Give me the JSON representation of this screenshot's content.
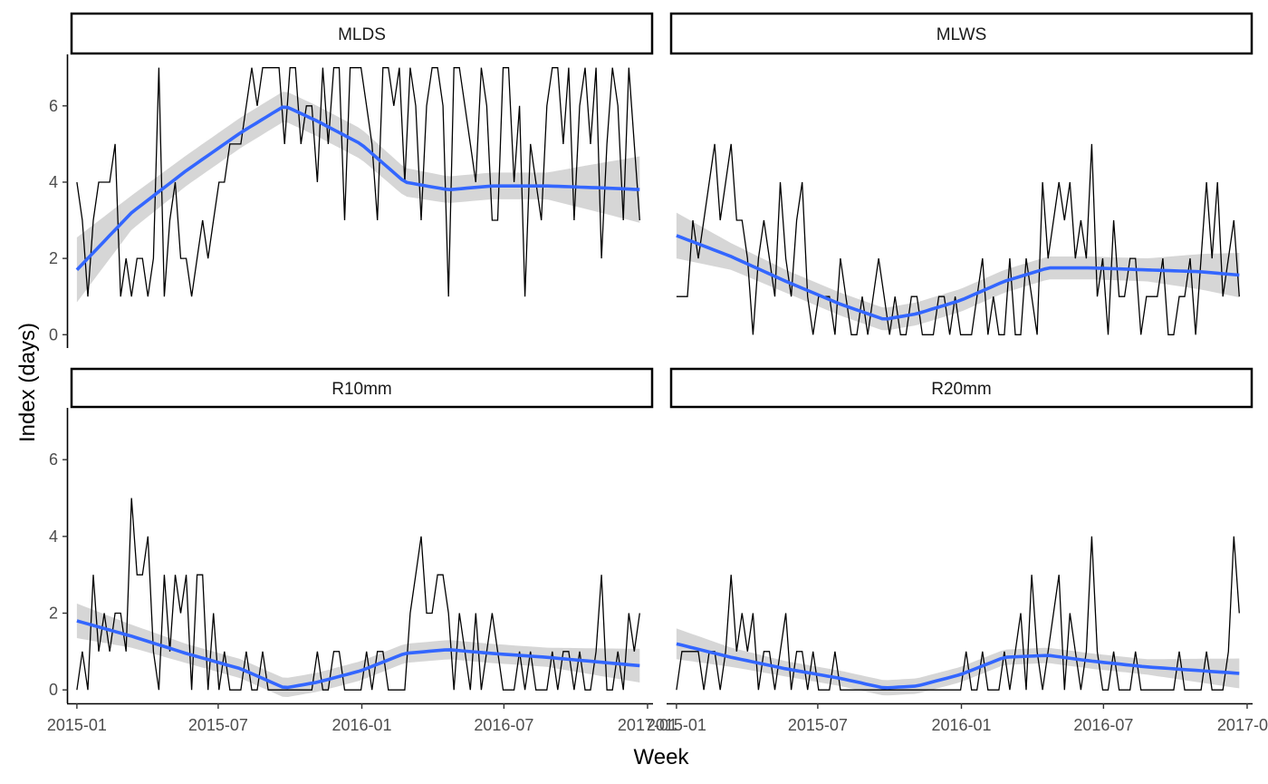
{
  "axes": {
    "xlabel": "Week",
    "ylabel": "Index (days)",
    "x_ticks": [
      "2015-01",
      "2015-07",
      "2016-01",
      "2016-07",
      "2017-01"
    ],
    "y_ticks": [
      "0",
      "2",
      "4",
      "6"
    ]
  },
  "chart_data": {
    "type": "line",
    "layout": "facet 2x2, shared x and y axes",
    "title": "",
    "xlabel": "Week",
    "ylabel": "Index (days)",
    "xlim": [
      "2014-12-24",
      "2017-01-08"
    ],
    "ylim": [
      -0.35,
      7.35
    ],
    "x_ticks": [
      "2015-01",
      "2015-07",
      "2016-01",
      "2016-07",
      "2017-01"
    ],
    "y_ticks": [
      0,
      2,
      4,
      6
    ],
    "colors": {
      "raw_line": "#000000",
      "smooth_line": "#3366ff",
      "ribbon": "#999999"
    },
    "smooth": "loess with grey 95% confidence ribbon",
    "weeks": {
      "start": "2015-01-01",
      "step_days": 7,
      "count": 104
    },
    "facets": [
      {
        "name": "MLDS",
        "values": [
          4,
          3,
          1,
          3,
          4,
          4,
          4,
          5,
          1,
          2,
          1,
          2,
          2,
          1,
          2,
          7,
          1,
          3,
          4,
          2,
          2,
          1,
          2,
          3,
          2,
          3,
          4,
          4,
          5,
          5,
          5,
          6,
          7,
          6,
          7,
          7,
          7,
          7,
          5,
          7,
          7,
          5,
          6,
          6,
          4,
          7,
          5,
          7,
          7,
          3,
          7,
          7,
          7,
          6,
          5,
          3,
          7,
          7,
          6,
          7,
          4,
          7,
          6,
          3,
          6,
          7,
          7,
          6,
          1,
          7,
          7,
          6,
          5,
          4,
          7,
          6,
          3,
          3,
          7,
          7,
          4,
          6,
          1,
          5,
          4,
          3,
          6,
          7,
          7,
          5,
          7,
          3,
          6,
          7,
          5,
          7,
          2,
          5,
          7,
          6,
          3,
          7,
          5,
          3
        ],
        "smooth": [
          [
            0,
            1.7
          ],
          [
            10,
            3.2
          ],
          [
            20,
            4.3
          ],
          [
            30,
            5.3
          ],
          [
            38,
            6.0
          ],
          [
            44,
            5.6
          ],
          [
            52,
            5.0
          ],
          [
            60,
            4.0
          ],
          [
            68,
            3.8
          ],
          [
            76,
            3.9
          ],
          [
            86,
            3.9
          ],
          [
            96,
            3.85
          ],
          [
            104,
            3.8
          ]
        ],
        "ribbon_halfwidth": [
          [
            0,
            0.85
          ],
          [
            10,
            0.45
          ],
          [
            20,
            0.4
          ],
          [
            30,
            0.4
          ],
          [
            38,
            0.4
          ],
          [
            52,
            0.4
          ],
          [
            68,
            0.35
          ],
          [
            86,
            0.35
          ],
          [
            104,
            0.9
          ]
        ]
      },
      {
        "name": "MLWS",
        "values": [
          1,
          1,
          1,
          3,
          2,
          3,
          4,
          5,
          3,
          4,
          5,
          3,
          3,
          2,
          0,
          2,
          3,
          2,
          1,
          4,
          2,
          1,
          3,
          4,
          1,
          0,
          1,
          1,
          1,
          0,
          2,
          1,
          0,
          0,
          1,
          0,
          1,
          2,
          1,
          0,
          1,
          0,
          0,
          1,
          1,
          0,
          0,
          0,
          1,
          1,
          0,
          1,
          0,
          0,
          0,
          1,
          2,
          0,
          1,
          0,
          0,
          2,
          0,
          0,
          2,
          1,
          0,
          4,
          2,
          3,
          4,
          3,
          4,
          2,
          3,
          2,
          5,
          1,
          2,
          0,
          3,
          1,
          1,
          2,
          2,
          0,
          1,
          1,
          1,
          2,
          0,
          0,
          1,
          1,
          2,
          0,
          2,
          4,
          2,
          4,
          1,
          2,
          3,
          1
        ],
        "smooth": [
          [
            0,
            2.6
          ],
          [
            10,
            2.05
          ],
          [
            20,
            1.4
          ],
          [
            30,
            0.8
          ],
          [
            38,
            0.4
          ],
          [
            44,
            0.55
          ],
          [
            52,
            0.9
          ],
          [
            60,
            1.4
          ],
          [
            68,
            1.75
          ],
          [
            76,
            1.75
          ],
          [
            86,
            1.7
          ],
          [
            96,
            1.65
          ],
          [
            104,
            1.55
          ]
        ],
        "ribbon_halfwidth": [
          [
            0,
            0.6
          ],
          [
            10,
            0.35
          ],
          [
            20,
            0.3
          ],
          [
            38,
            0.3
          ],
          [
            60,
            0.3
          ],
          [
            86,
            0.3
          ],
          [
            104,
            0.6
          ]
        ]
      },
      {
        "name": "R10mm",
        "values": [
          0,
          1,
          0,
          3,
          1,
          2,
          1,
          2,
          2,
          1,
          5,
          3,
          3,
          4,
          1,
          0,
          3,
          1,
          3,
          2,
          3,
          0,
          3,
          3,
          0,
          2,
          0,
          1,
          0,
          0,
          0,
          1,
          0,
          0,
          1,
          0,
          0,
          0,
          0,
          0,
          0,
          0,
          0,
          0,
          1,
          0,
          0,
          1,
          1,
          0,
          0,
          0,
          0,
          1,
          0,
          1,
          1,
          0,
          0,
          0,
          0,
          2,
          3,
          4,
          2,
          2,
          3,
          3,
          2,
          0,
          2,
          1,
          0,
          2,
          0,
          1,
          2,
          1,
          0,
          0,
          0,
          1,
          0,
          1,
          0,
          0,
          0,
          1,
          0,
          1,
          1,
          0,
          1,
          0,
          0,
          1,
          3,
          0,
          0,
          1,
          0,
          2,
          1,
          2
        ],
        "smooth": [
          [
            0,
            1.8
          ],
          [
            10,
            1.4
          ],
          [
            20,
            0.95
          ],
          [
            30,
            0.55
          ],
          [
            38,
            0.05
          ],
          [
            44,
            0.2
          ],
          [
            52,
            0.5
          ],
          [
            60,
            0.95
          ],
          [
            68,
            1.05
          ],
          [
            76,
            0.95
          ],
          [
            86,
            0.85
          ],
          [
            96,
            0.72
          ],
          [
            104,
            0.62
          ]
        ],
        "ribbon_halfwidth": [
          [
            0,
            0.45
          ],
          [
            10,
            0.3
          ],
          [
            20,
            0.25
          ],
          [
            38,
            0.25
          ],
          [
            60,
            0.25
          ],
          [
            86,
            0.25
          ],
          [
            104,
            0.45
          ]
        ]
      },
      {
        "name": "R20mm",
        "values": [
          0,
          1,
          1,
          1,
          1,
          0,
          1,
          1,
          0,
          1,
          3,
          1,
          2,
          1,
          2,
          0,
          1,
          1,
          0,
          1,
          2,
          0,
          1,
          1,
          0,
          1,
          0,
          0,
          0,
          1,
          0,
          0,
          0,
          0,
          0,
          0,
          0,
          0,
          0,
          0,
          0,
          0,
          0,
          0,
          0,
          0,
          0,
          0,
          0,
          0,
          0,
          0,
          0,
          1,
          0,
          0,
          1,
          0,
          0,
          0,
          1,
          0,
          1,
          2,
          0,
          3,
          1,
          0,
          1,
          2,
          3,
          0,
          2,
          1,
          0,
          1,
          4,
          1,
          0,
          0,
          1,
          0,
          0,
          0,
          1,
          0,
          0,
          0,
          0,
          0,
          0,
          0,
          1,
          0,
          0,
          0,
          0,
          1,
          0,
          0,
          0,
          1,
          4,
          2
        ],
        "smooth": [
          [
            0,
            1.2
          ],
          [
            10,
            0.85
          ],
          [
            20,
            0.55
          ],
          [
            30,
            0.3
          ],
          [
            38,
            0.05
          ],
          [
            44,
            0.1
          ],
          [
            52,
            0.4
          ],
          [
            60,
            0.85
          ],
          [
            68,
            0.9
          ],
          [
            76,
            0.75
          ],
          [
            86,
            0.6
          ],
          [
            96,
            0.5
          ],
          [
            104,
            0.42
          ]
        ],
        "ribbon_halfwidth": [
          [
            0,
            0.4
          ],
          [
            10,
            0.25
          ],
          [
            20,
            0.2
          ],
          [
            38,
            0.2
          ],
          [
            60,
            0.2
          ],
          [
            86,
            0.2
          ],
          [
            104,
            0.4
          ]
        ]
      }
    ]
  }
}
